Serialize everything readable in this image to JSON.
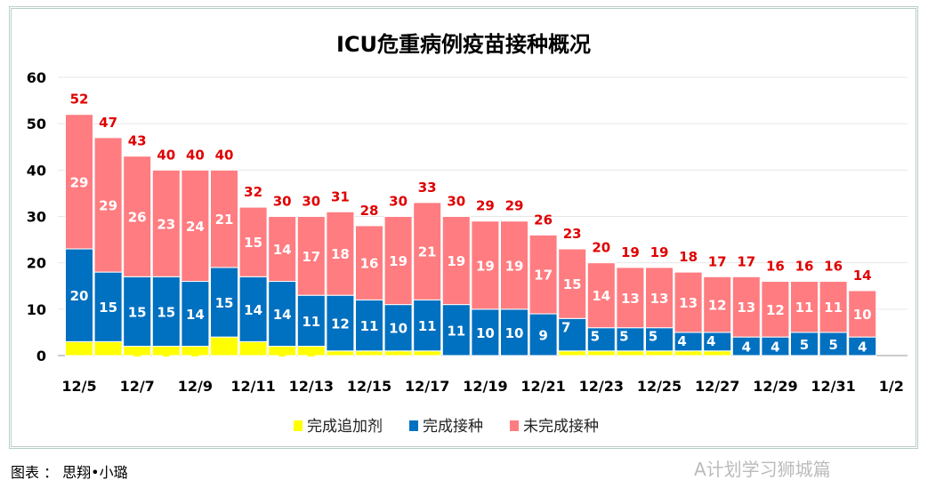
{
  "chart_data": {
    "type": "bar",
    "stacked": true,
    "title": "ICU危重病例疫苗接种概况",
    "categories": [
      "12/5",
      "12/6",
      "12/7",
      "12/8",
      "12/9",
      "12/10",
      "12/11",
      "12/12",
      "12/13",
      "12/14",
      "12/15",
      "12/16",
      "12/17",
      "12/18",
      "12/19",
      "12/20",
      "12/21",
      "12/22",
      "12/23",
      "12/24",
      "12/25",
      "12/26",
      "12/27",
      "12/28",
      "12/29",
      "12/30",
      "12/31",
      "1/1"
    ],
    "x_tick_labels": [
      "12/5",
      "12/7",
      "12/9",
      "12/11",
      "12/13",
      "12/15",
      "12/17",
      "12/19",
      "12/21",
      "12/23",
      "12/25",
      "12/27",
      "12/29",
      "12/31",
      "1/2"
    ],
    "ylim": [
      0,
      60
    ],
    "y_ticks": [
      0,
      10,
      20,
      30,
      40,
      50,
      60
    ],
    "grid": true,
    "legend_position": "bottom",
    "series": [
      {
        "name": "完成追加剂",
        "color": "#ffff00",
        "label_color": "#ffff00",
        "values": [
          3,
          3,
          2,
          2,
          2,
          4,
          3,
          2,
          2,
          1,
          1,
          1,
          1,
          0,
          0,
          0,
          0,
          1,
          1,
          1,
          1,
          1,
          1,
          0,
          0,
          0,
          0,
          0
        ]
      },
      {
        "name": "完成接种",
        "color": "#0070c0",
        "label_color": "#ffffff",
        "values": [
          20,
          15,
          15,
          15,
          14,
          15,
          14,
          14,
          11,
          12,
          11,
          10,
          11,
          11,
          10,
          10,
          9,
          7,
          5,
          5,
          5,
          4,
          4,
          4,
          4,
          5,
          5,
          4
        ]
      },
      {
        "name": "未完成接种",
        "color": "#ff7c80",
        "label_color": "#ffffff",
        "values": [
          29,
          29,
          26,
          23,
          24,
          21,
          15,
          14,
          17,
          18,
          16,
          19,
          21,
          19,
          19,
          19,
          17,
          15,
          14,
          13,
          13,
          13,
          12,
          13,
          12,
          11,
          11,
          10
        ]
      }
    ],
    "totals": [
      52,
      47,
      43,
      40,
      40,
      40,
      32,
      30,
      30,
      31,
      28,
      30,
      33,
      30,
      29,
      29,
      26,
      23,
      20,
      19,
      19,
      18,
      17,
      17,
      16,
      16,
      16,
      14
    ],
    "total_color": "#e00000"
  },
  "caption": "图表 ： 思翔•小璐",
  "watermark": "A计划学习狮城篇"
}
